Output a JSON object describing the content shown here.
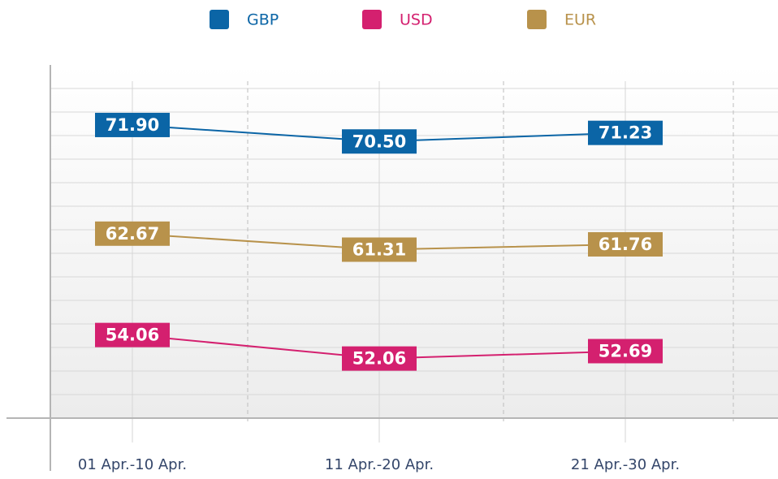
{
  "chart_data": {
    "type": "line",
    "categories": [
      "01 Apr.-10 Apr.",
      "11 Apr.-20 Apr.",
      "21 Apr.-30 Apr."
    ],
    "series": [
      {
        "name": "GBP",
        "color": "#0b65a6",
        "values": [
          71.9,
          70.5,
          71.23
        ],
        "value_labels": [
          "71.90",
          "70.50",
          "71.23"
        ]
      },
      {
        "name": "USD",
        "color": "#d4206f",
        "values": [
          54.06,
          52.06,
          52.69
        ],
        "value_labels": [
          "54.06",
          "52.06",
          "52.69"
        ]
      },
      {
        "name": "EUR",
        "color": "#b8924b",
        "values": [
          62.67,
          61.31,
          61.76
        ],
        "value_labels": [
          "62.67",
          "61.31",
          "61.76"
        ]
      }
    ],
    "ylim": [
      47,
      77
    ],
    "yticks": [
      49,
      51,
      53,
      55,
      57,
      59,
      61,
      63,
      65,
      67,
      69,
      71,
      73,
      75
    ],
    "grid": true,
    "legend": "top"
  }
}
